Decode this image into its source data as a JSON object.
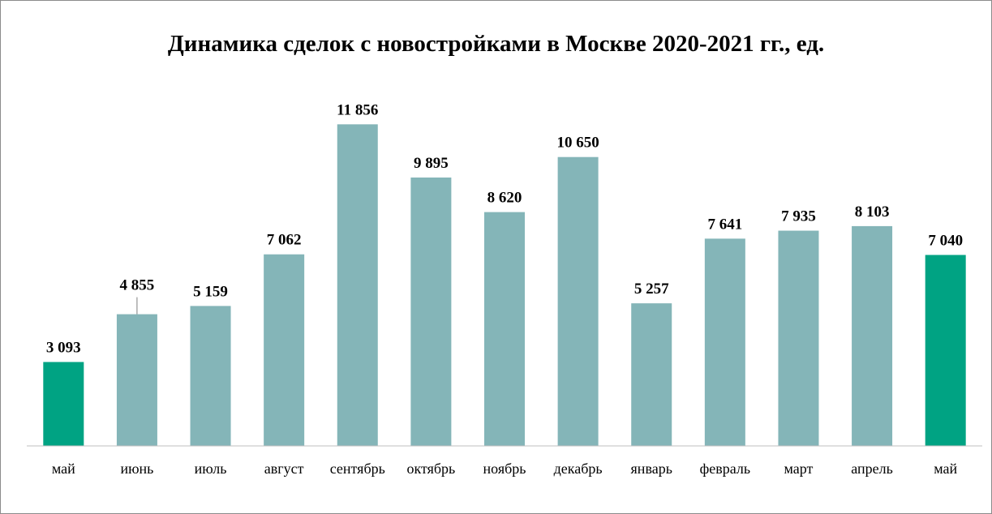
{
  "chart_data": {
    "type": "bar",
    "title": "Динамика сделок с новостройками в Москве 2020-2021 гг., ед.",
    "xlabel": "",
    "ylabel": "",
    "ylim": [
      0,
      13600
    ],
    "grid": false,
    "legend": "none",
    "categories": [
      "май",
      "июнь",
      "июль",
      "август",
      "сентябрь",
      "октябрь",
      "ноябрь",
      "декабрь",
      "январь",
      "февраль",
      "март",
      "апрель",
      "май"
    ],
    "values": [
      3093,
      4855,
      5159,
      7062,
      11856,
      9895,
      8620,
      10650,
      5257,
      7641,
      7935,
      8103,
      7040
    ],
    "value_labels": [
      "3 093",
      "4 855",
      "5 159",
      "7 062",
      "11 856",
      "9 895",
      "8 620",
      "10 650",
      "5 257",
      "7 641",
      "7 935",
      "8 103",
      "7 040"
    ],
    "highlighted": [
      0,
      12
    ],
    "colors": {
      "bar": "#84b5b8",
      "highlight": "#00a383",
      "axis": "#bfbfbf"
    }
  }
}
